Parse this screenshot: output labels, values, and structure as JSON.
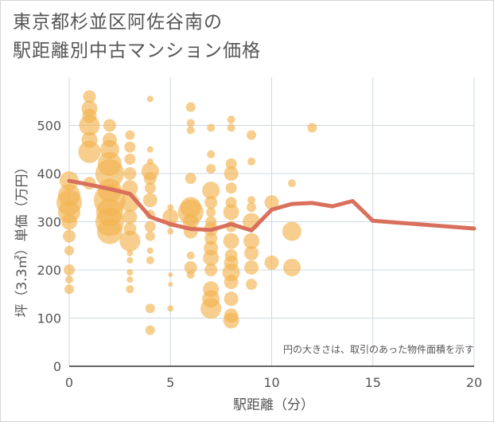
{
  "title_line1": "東京都杉並区阿佐谷南の",
  "title_line2": "駅距離別中古マンション価格",
  "chart_data": {
    "type": "scatter",
    "xlabel": "駅距離（分）",
    "ylabel": "坪（3.3㎡）単価（万円）",
    "note": "円の大きさは、取引のあった物件面積を示す",
    "xlim": [
      0,
      20
    ],
    "ylim": [
      0,
      600
    ],
    "xticks": [
      0,
      5,
      10,
      15,
      20
    ],
    "yticks": [
      0,
      100,
      200,
      300,
      400,
      500
    ],
    "grid": true,
    "colors": {
      "bubble": "#f2b450",
      "line": "#d8705b"
    },
    "line": {
      "x": [
        0,
        1,
        2,
        3,
        4,
        5,
        6,
        7,
        8,
        9,
        10,
        11,
        12,
        13,
        14,
        15,
        20
      ],
      "y": [
        385,
        377,
        368,
        358,
        310,
        295,
        285,
        283,
        295,
        282,
        325,
        337,
        339,
        332,
        343,
        302,
        286
      ]
    },
    "bubbles": [
      {
        "x": 0,
        "y": 160,
        "s": 6
      },
      {
        "x": 0,
        "y": 180,
        "s": 5
      },
      {
        "x": 0,
        "y": 200,
        "s": 7
      },
      {
        "x": 0,
        "y": 240,
        "s": 6
      },
      {
        "x": 0,
        "y": 270,
        "s": 8
      },
      {
        "x": 0,
        "y": 300,
        "s": 10
      },
      {
        "x": 0,
        "y": 320,
        "s": 14
      },
      {
        "x": 0,
        "y": 340,
        "s": 16
      },
      {
        "x": 0,
        "y": 355,
        "s": 14
      },
      {
        "x": 0,
        "y": 385,
        "s": 12
      },
      {
        "x": 1,
        "y": 445,
        "s": 14
      },
      {
        "x": 1,
        "y": 470,
        "s": 10
      },
      {
        "x": 1,
        "y": 500,
        "s": 13
      },
      {
        "x": 1,
        "y": 520,
        "s": 9
      },
      {
        "x": 1,
        "y": 535,
        "s": 10
      },
      {
        "x": 1,
        "y": 560,
        "s": 8
      },
      {
        "x": 1,
        "y": 380,
        "s": 8
      },
      {
        "x": 2,
        "y": 280,
        "s": 16
      },
      {
        "x": 2,
        "y": 300,
        "s": 18
      },
      {
        "x": 2,
        "y": 320,
        "s": 17
      },
      {
        "x": 2,
        "y": 345,
        "s": 20
      },
      {
        "x": 2,
        "y": 365,
        "s": 15
      },
      {
        "x": 2,
        "y": 400,
        "s": 18
      },
      {
        "x": 2,
        "y": 420,
        "s": 15
      },
      {
        "x": 2,
        "y": 450,
        "s": 12
      },
      {
        "x": 2,
        "y": 470,
        "s": 9
      },
      {
        "x": 2,
        "y": 500,
        "s": 8
      },
      {
        "x": 3,
        "y": 160,
        "s": 5
      },
      {
        "x": 3,
        "y": 180,
        "s": 4
      },
      {
        "x": 3,
        "y": 195,
        "s": 4
      },
      {
        "x": 3,
        "y": 220,
        "s": 4
      },
      {
        "x": 3,
        "y": 235,
        "s": 4
      },
      {
        "x": 3,
        "y": 260,
        "s": 13
      },
      {
        "x": 3,
        "y": 285,
        "s": 8
      },
      {
        "x": 3,
        "y": 310,
        "s": 9
      },
      {
        "x": 3,
        "y": 340,
        "s": 12
      },
      {
        "x": 3,
        "y": 370,
        "s": 10
      },
      {
        "x": 3,
        "y": 400,
        "s": 8
      },
      {
        "x": 3,
        "y": 430,
        "s": 7
      },
      {
        "x": 3,
        "y": 455,
        "s": 7
      },
      {
        "x": 3,
        "y": 480,
        "s": 6
      },
      {
        "x": 4,
        "y": 75,
        "s": 6
      },
      {
        "x": 4,
        "y": 120,
        "s": 6
      },
      {
        "x": 4,
        "y": 220,
        "s": 5
      },
      {
        "x": 4,
        "y": 240,
        "s": 4
      },
      {
        "x": 4,
        "y": 270,
        "s": 6
      },
      {
        "x": 4,
        "y": 290,
        "s": 7
      },
      {
        "x": 4,
        "y": 315,
        "s": 6
      },
      {
        "x": 4,
        "y": 345,
        "s": 9
      },
      {
        "x": 4,
        "y": 370,
        "s": 7
      },
      {
        "x": 4,
        "y": 390,
        "s": 8
      },
      {
        "x": 4,
        "y": 405,
        "s": 11
      },
      {
        "x": 4,
        "y": 425,
        "s": 4
      },
      {
        "x": 4,
        "y": 450,
        "s": 4
      },
      {
        "x": 4,
        "y": 555,
        "s": 4
      },
      {
        "x": 5,
        "y": 120,
        "s": 4
      },
      {
        "x": 5,
        "y": 170,
        "s": 3
      },
      {
        "x": 5,
        "y": 190,
        "s": 3
      },
      {
        "x": 5,
        "y": 280,
        "s": 4
      },
      {
        "x": 5,
        "y": 295,
        "s": 4
      },
      {
        "x": 5,
        "y": 310,
        "s": 10
      },
      {
        "x": 5,
        "y": 330,
        "s": 4
      },
      {
        "x": 6,
        "y": 190,
        "s": 5
      },
      {
        "x": 6,
        "y": 205,
        "s": 8
      },
      {
        "x": 6,
        "y": 230,
        "s": 5
      },
      {
        "x": 6,
        "y": 280,
        "s": 9
      },
      {
        "x": 6,
        "y": 300,
        "s": 10
      },
      {
        "x": 6,
        "y": 320,
        "s": 16
      },
      {
        "x": 6,
        "y": 330,
        "s": 13
      },
      {
        "x": 6,
        "y": 390,
        "s": 7
      },
      {
        "x": 6,
        "y": 490,
        "s": 5
      },
      {
        "x": 6,
        "y": 505,
        "s": 5
      },
      {
        "x": 6,
        "y": 538,
        "s": 6
      },
      {
        "x": 7,
        "y": 120,
        "s": 13
      },
      {
        "x": 7,
        "y": 140,
        "s": 11
      },
      {
        "x": 7,
        "y": 160,
        "s": 10
      },
      {
        "x": 7,
        "y": 200,
        "s": 8
      },
      {
        "x": 7,
        "y": 225,
        "s": 10
      },
      {
        "x": 7,
        "y": 245,
        "s": 9
      },
      {
        "x": 7,
        "y": 265,
        "s": 8
      },
      {
        "x": 7,
        "y": 285,
        "s": 9
      },
      {
        "x": 7,
        "y": 300,
        "s": 7
      },
      {
        "x": 7,
        "y": 320,
        "s": 6
      },
      {
        "x": 7,
        "y": 340,
        "s": 8
      },
      {
        "x": 7,
        "y": 365,
        "s": 11
      },
      {
        "x": 7,
        "y": 410,
        "s": 6
      },
      {
        "x": 7,
        "y": 440,
        "s": 5
      },
      {
        "x": 7,
        "y": 495,
        "s": 5
      },
      {
        "x": 8,
        "y": 95,
        "s": 10
      },
      {
        "x": 8,
        "y": 105,
        "s": 9
      },
      {
        "x": 8,
        "y": 140,
        "s": 9
      },
      {
        "x": 8,
        "y": 175,
        "s": 9
      },
      {
        "x": 8,
        "y": 195,
        "s": 11
      },
      {
        "x": 8,
        "y": 215,
        "s": 9
      },
      {
        "x": 8,
        "y": 230,
        "s": 8
      },
      {
        "x": 8,
        "y": 260,
        "s": 10
      },
      {
        "x": 8,
        "y": 290,
        "s": 7
      },
      {
        "x": 8,
        "y": 320,
        "s": 10
      },
      {
        "x": 8,
        "y": 340,
        "s": 7
      },
      {
        "x": 8,
        "y": 370,
        "s": 7
      },
      {
        "x": 8,
        "y": 400,
        "s": 9
      },
      {
        "x": 8,
        "y": 420,
        "s": 7
      },
      {
        "x": 8,
        "y": 495,
        "s": 5
      },
      {
        "x": 8,
        "y": 512,
        "s": 5
      },
      {
        "x": 9,
        "y": 170,
        "s": 7
      },
      {
        "x": 9,
        "y": 205,
        "s": 9
      },
      {
        "x": 9,
        "y": 235,
        "s": 9
      },
      {
        "x": 9,
        "y": 260,
        "s": 10
      },
      {
        "x": 9,
        "y": 300,
        "s": 11
      },
      {
        "x": 9,
        "y": 330,
        "s": 6
      },
      {
        "x": 9,
        "y": 345,
        "s": 5
      },
      {
        "x": 9,
        "y": 425,
        "s": 5
      },
      {
        "x": 9,
        "y": 480,
        "s": 6
      },
      {
        "x": 10,
        "y": 215,
        "s": 9
      },
      {
        "x": 10,
        "y": 340,
        "s": 9
      },
      {
        "x": 11,
        "y": 205,
        "s": 11
      },
      {
        "x": 11,
        "y": 280,
        "s": 12
      },
      {
        "x": 11,
        "y": 380,
        "s": 5
      },
      {
        "x": 12,
        "y": 495,
        "s": 6
      }
    ]
  }
}
